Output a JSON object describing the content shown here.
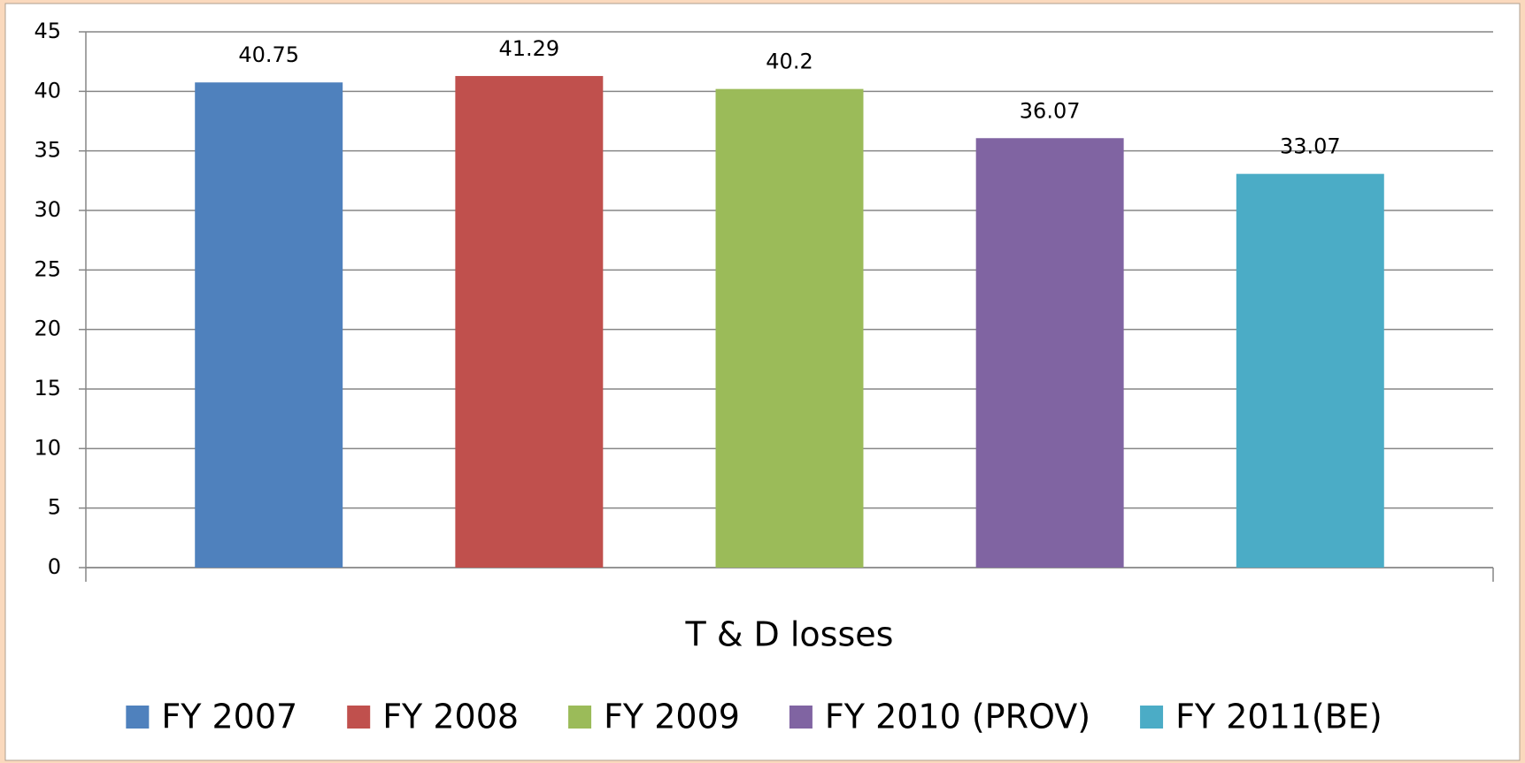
{
  "chart_data": {
    "type": "bar",
    "categories": [
      "T & D losses"
    ],
    "series": [
      {
        "name": "FY 2007",
        "color": "#4f81bd",
        "values": [
          40.75
        ]
      },
      {
        "name": "FY 2008",
        "color": "#c0504d",
        "values": [
          41.29
        ]
      },
      {
        "name": "FY 2009",
        "color": "#9bbb59",
        "values": [
          40.2
        ]
      },
      {
        "name": "FY 2010 (PROV)",
        "color": "#8064a2",
        "values": [
          36.07
        ]
      },
      {
        "name": "FY 2011(BE)",
        "color": "#4bacc6",
        "values": [
          33.07
        ]
      }
    ],
    "ylim": [
      0,
      45
    ],
    "yticks": [
      0,
      5,
      10,
      15,
      20,
      25,
      30,
      35,
      40,
      45
    ],
    "grid": true,
    "legend": "bottom"
  }
}
